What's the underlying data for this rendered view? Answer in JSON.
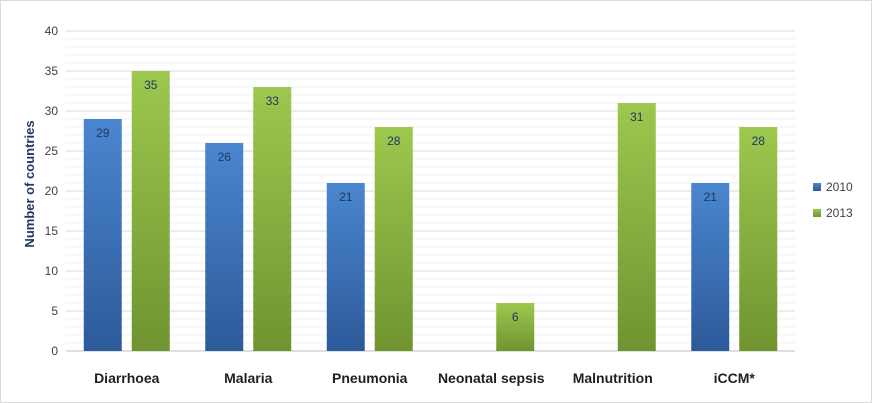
{
  "chart_data": {
    "type": "bar",
    "title": "",
    "xlabel": "",
    "ylabel": "Number of countries",
    "ylim": [
      0,
      40
    ],
    "yticks": [
      0,
      5,
      10,
      15,
      20,
      25,
      30,
      35,
      40
    ],
    "grid": true,
    "legend_position": "right",
    "categories": [
      "Diarrhoea",
      "Malaria",
      "Pneumonia",
      "Neonatal sepsis",
      "Malnutrition",
      "iCCM*"
    ],
    "series": [
      {
        "name": "2010",
        "color": "#3a6eb5",
        "values": [
          29,
          26,
          21,
          null,
          null,
          21
        ]
      },
      {
        "name": "2013",
        "color": "#8ab43f",
        "values": [
          35,
          33,
          28,
          6,
          31,
          28
        ]
      }
    ]
  }
}
